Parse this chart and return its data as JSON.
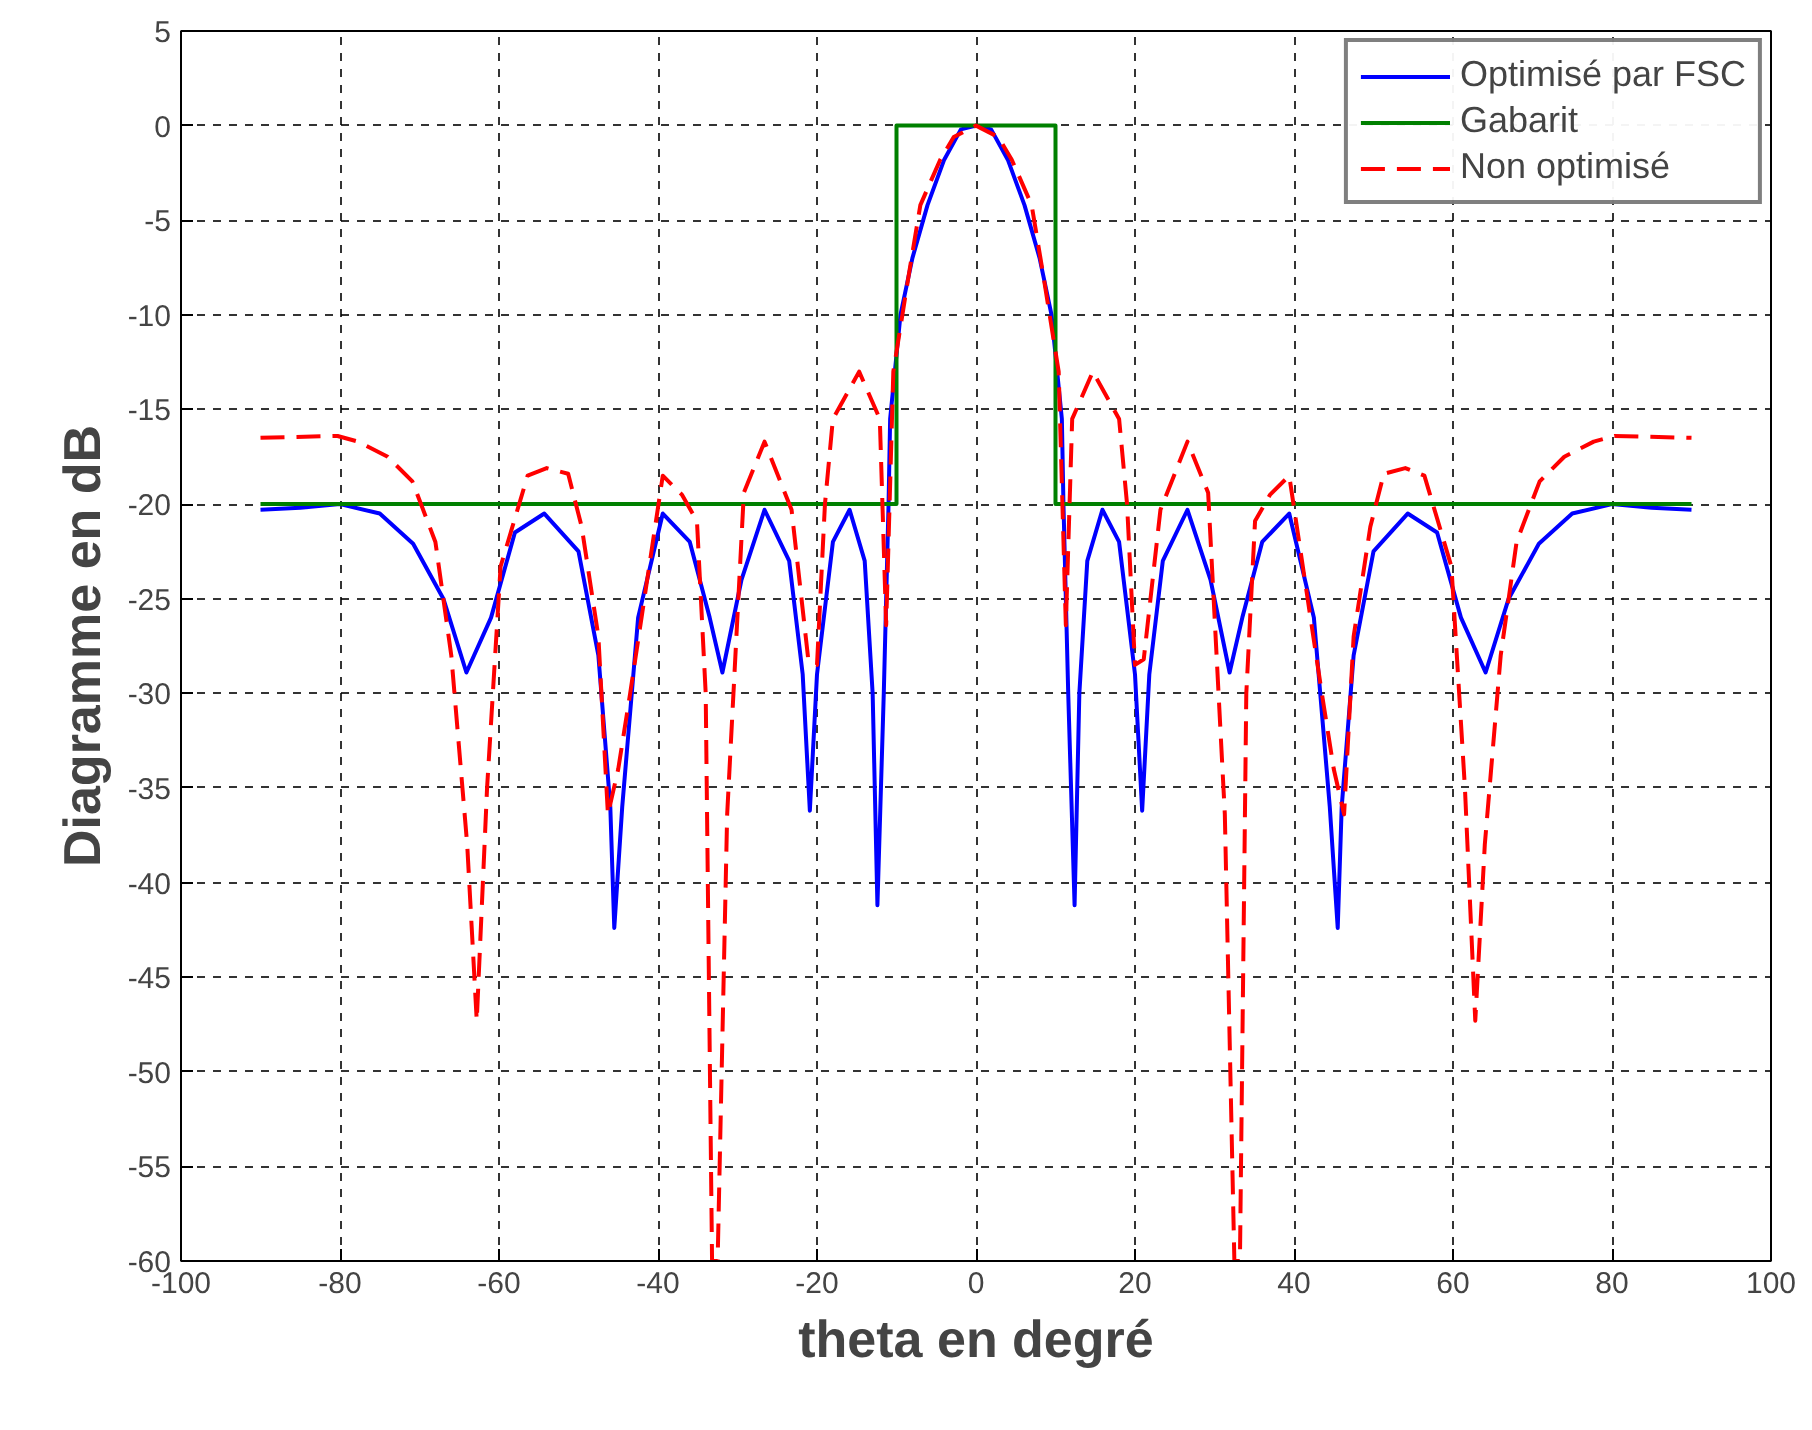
{
  "chart_data": {
    "type": "line",
    "xlabel": "theta en degré",
    "ylabel": "Diagramme en dB",
    "xlim": [
      -100,
      100
    ],
    "ylim": [
      -60,
      5
    ],
    "xticks": [
      -100,
      -80,
      -60,
      -40,
      -20,
      0,
      20,
      40,
      60,
      80,
      100
    ],
    "yticks": [
      -60,
      -55,
      -50,
      -45,
      -40,
      -35,
      -30,
      -25,
      -20,
      -15,
      -10,
      -5,
      0,
      5
    ],
    "grid": true,
    "legend": "top right",
    "marker": "none",
    "series": [
      {
        "name": "Optimisé par FSC",
        "color": "#0000ff",
        "line_style": "solid",
        "x": [
          -90,
          -85,
          -80,
          -75,
          -70.8,
          -67,
          -64.1,
          -61,
          -58,
          -54.3,
          -50,
          -47.5,
          -46,
          -45.5,
          -44.5,
          -42.5,
          -39.4,
          -36,
          -33.5,
          -31.9,
          -29.5,
          -26.6,
          -23.5,
          -21.8,
          -20.9,
          -20,
          -18,
          -15.9,
          -14,
          -13,
          -12.4,
          -11.6,
          -11,
          -10.8,
          -9.5,
          -8,
          -6.1,
          -4,
          -1.9,
          0,
          1.9,
          4,
          6.1,
          8,
          9.5,
          10.8,
          11,
          11.6,
          12.4,
          13,
          14,
          15.9,
          18,
          20,
          20.9,
          21.8,
          23.5,
          26.6,
          29.5,
          31.9,
          33.5,
          36,
          39.4,
          42.5,
          44.5,
          45.5,
          46,
          47.5,
          50,
          54.3,
          58,
          61,
          64.1,
          67,
          70.8,
          75,
          80,
          85,
          90
        ],
        "values": [
          -20.3,
          -20.2,
          -20.0,
          -20.5,
          -22.1,
          -25,
          -28.9,
          -26,
          -21.5,
          -20.5,
          -22.5,
          -28,
          -36,
          -42.4,
          -36,
          -26,
          -20.5,
          -22,
          -26,
          -28.9,
          -24,
          -20.3,
          -23,
          -29,
          -36.2,
          -29,
          -22,
          -20.3,
          -23,
          -30,
          -41.2,
          -30,
          -20,
          -15.5,
          -10,
          -7,
          -4.2,
          -1.8,
          -0.2,
          0,
          -0.2,
          -1.8,
          -4.2,
          -7,
          -10,
          -15.5,
          -20,
          -30,
          -41.2,
          -30,
          -23,
          -20.3,
          -22,
          -29,
          -36.2,
          -29,
          -23,
          -20.3,
          -24,
          -28.9,
          -26,
          -22,
          -20.5,
          -26,
          -36,
          -42.4,
          -36,
          -28,
          -22.5,
          -20.5,
          -21.5,
          -26,
          -28.9,
          -25,
          -22.1,
          -20.5,
          -20.0,
          -20.2,
          -20.3
        ]
      },
      {
        "name": "Gabarit",
        "color": "#008000",
        "line_style": "solid",
        "x": [
          -90,
          -10,
          -10,
          10,
          10,
          90
        ],
        "values": [
          -20,
          -20,
          0,
          0,
          -20,
          -20
        ]
      },
      {
        "name": "Non optimisé",
        "color": "#ff0000",
        "line_style": "dashed",
        "x": [
          -90,
          -80.3,
          -77.7,
          -74,
          -70.9,
          -68,
          -66,
          -64,
          -62.8,
          -61.5,
          -59.8,
          -56.4,
          -54,
          -51.3,
          -49.6,
          -47.5,
          -46.3,
          -45,
          -43.5,
          -42,
          -39.4,
          -37,
          -35.1,
          -34,
          -33.2,
          -32.5,
          -31.3,
          -29.2,
          -26.6,
          -23.2,
          -21.1,
          -20,
          -19,
          -18,
          -14.7,
          -12.1,
          -11.3,
          -10.4,
          -8.5,
          -7,
          -4.5,
          -2.8,
          0,
          2.8,
          4.5,
          7,
          8.5,
          10.4,
          11.3,
          12.1,
          14.7,
          18,
          19,
          20,
          21.1,
          23.2,
          26.6,
          29.2,
          31.3,
          32.5,
          33.2,
          34,
          35.1,
          37,
          39.4,
          42,
          43.5,
          45,
          46.3,
          47.5,
          49.6,
          51.3,
          54,
          56.4,
          59.8,
          61.5,
          62.8,
          64,
          66,
          68,
          70.9,
          74,
          77.7,
          80.3,
          90
        ],
        "values": [
          -16.5,
          -16.4,
          -16.7,
          -17.5,
          -18.8,
          -22,
          -28,
          -38,
          -47.3,
          -35,
          -23.3,
          -18.5,
          -18.1,
          -18.4,
          -21.2,
          -27,
          -36.4,
          -34,
          -30,
          -25.8,
          -18.5,
          -19.5,
          -20.9,
          -30,
          -60,
          -60,
          -36.4,
          -19.4,
          -16.7,
          -20.3,
          -28.2,
          -28.5,
          -20,
          -15.5,
          -13.0,
          -15.5,
          -26.4,
          -13,
          -8,
          -4.2,
          -1.8,
          -0.6,
          0,
          -0.6,
          -1.8,
          -4.2,
          -8,
          -13,
          -26.4,
          -15.5,
          -13.0,
          -15.5,
          -20,
          -28.5,
          -28.2,
          -20.3,
          -16.7,
          -19.4,
          -36.4,
          -60,
          -60,
          -30,
          -20.9,
          -19.5,
          -18.5,
          -25.8,
          -30,
          -34,
          -36.4,
          -27,
          -21.2,
          -18.4,
          -18.1,
          -18.5,
          -23.3,
          -35,
          -47.3,
          -38,
          -28,
          -22,
          -18.8,
          -17.5,
          -16.7,
          -16.4,
          -16.5
        ]
      }
    ]
  }
}
